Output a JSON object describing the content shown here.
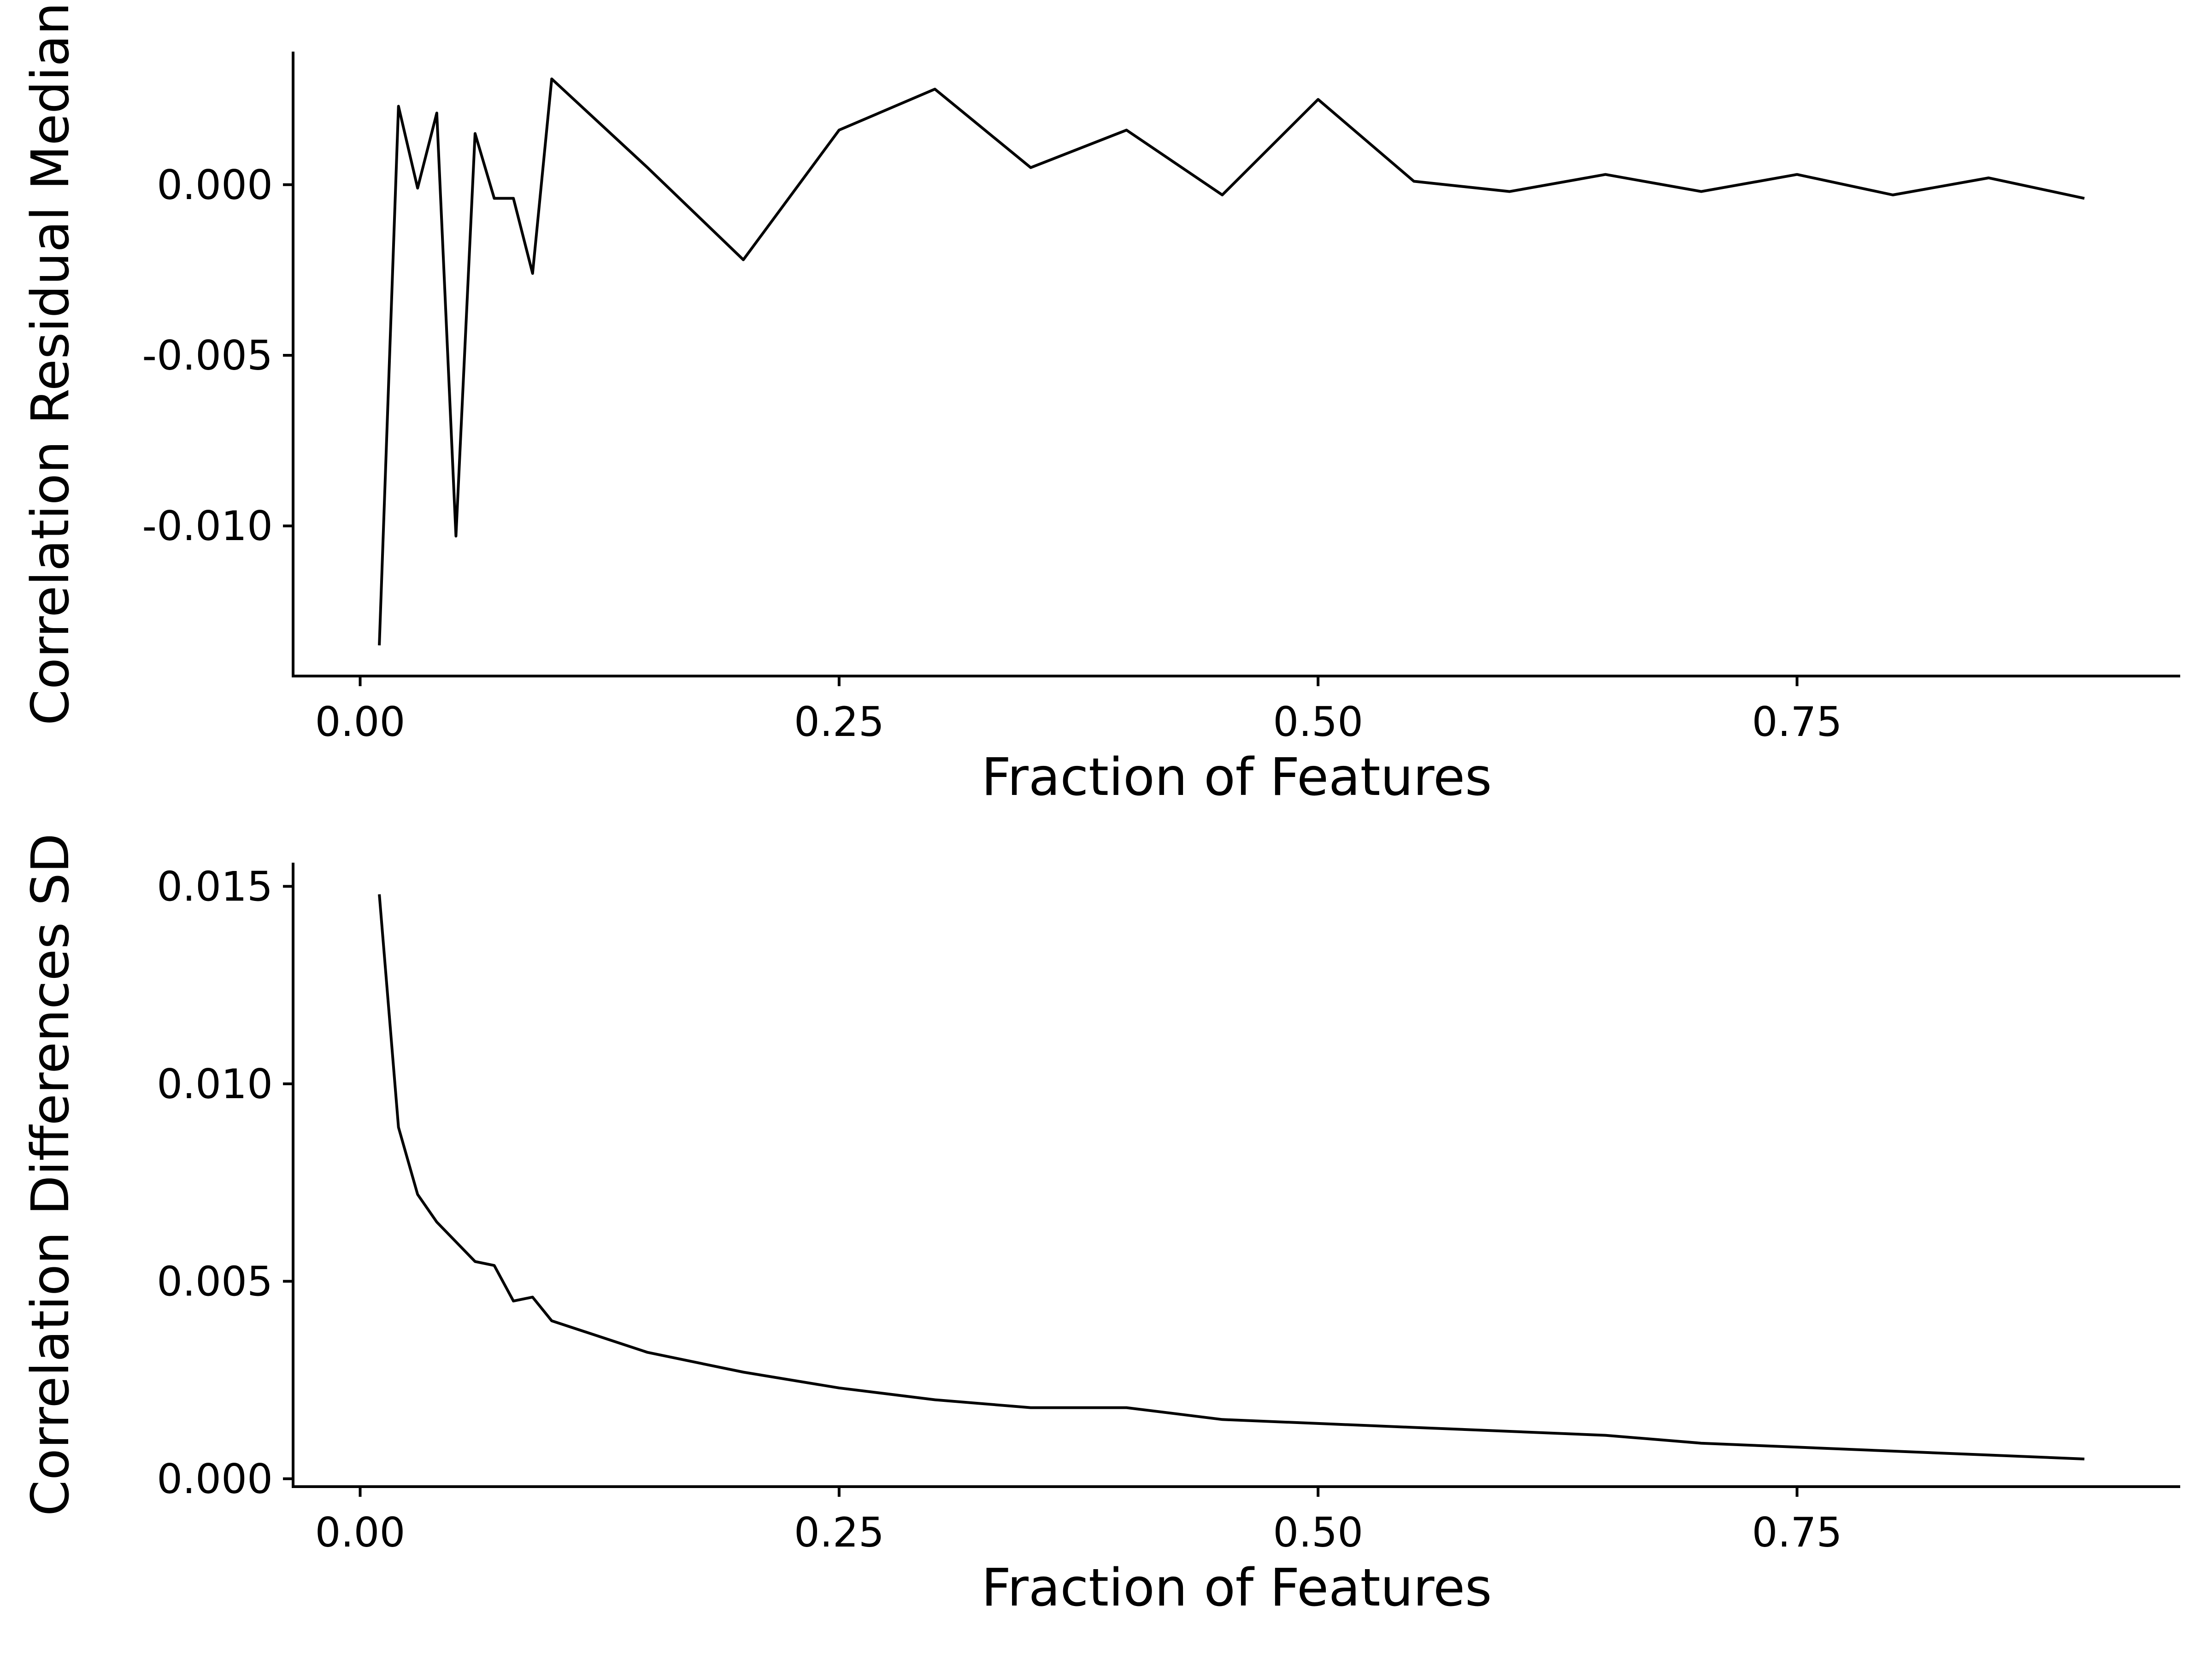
{
  "chart_data": [
    {
      "type": "line",
      "title": "",
      "xlabel": "Fraction of Features",
      "ylabel": "Correlation Residual Median",
      "xlim": [
        -0.035,
        0.95
      ],
      "ylim": [
        -0.0144,
        0.0039
      ],
      "x_ticks": [
        0.0,
        0.25,
        0.5,
        0.75
      ],
      "x_tick_labels": [
        "0.00",
        "0.25",
        "0.50",
        "0.75"
      ],
      "y_ticks": [
        -0.01,
        -0.005,
        0.0
      ],
      "y_tick_labels": [
        "-0.010",
        "-0.005",
        "0.000"
      ],
      "grid": false,
      "series": [
        {
          "color": "#000000",
          "x": [
            0.01,
            0.02,
            0.03,
            0.04,
            0.05,
            0.06,
            0.07,
            0.08,
            0.09,
            0.1,
            0.15,
            0.2,
            0.25,
            0.3,
            0.35,
            0.4,
            0.45,
            0.5,
            0.55,
            0.6,
            0.65,
            0.7,
            0.75,
            0.8,
            0.85,
            0.9
          ],
          "y": [
            -0.0135,
            0.0023,
            -0.0001,
            0.0021,
            -0.0103,
            0.0015,
            -0.0004,
            -0.0004,
            -0.0026,
            0.0031,
            0.0005,
            -0.0022,
            0.0016,
            0.0028,
            0.0005,
            0.0016,
            -0.0003,
            0.0025,
            0.0001,
            -0.0002,
            0.0003,
            -0.0002,
            0.0003,
            -0.0003,
            0.0002,
            -0.0004
          ]
        }
      ]
    },
    {
      "type": "line",
      "title": "",
      "xlabel": "Fraction of Features",
      "ylabel": "Correlation Differences SD",
      "xlim": [
        -0.035,
        0.95
      ],
      "ylim": [
        -0.0002,
        0.0156
      ],
      "x_ticks": [
        0.0,
        0.25,
        0.5,
        0.75
      ],
      "x_tick_labels": [
        "0.00",
        "0.25",
        "0.50",
        "0.75"
      ],
      "y_ticks": [
        0.0,
        0.005,
        0.01,
        0.015
      ],
      "y_tick_labels": [
        "0.000",
        "0.005",
        "0.010",
        "0.015"
      ],
      "grid": false,
      "series": [
        {
          "color": "#000000",
          "x": [
            0.01,
            0.02,
            0.03,
            0.04,
            0.05,
            0.06,
            0.07,
            0.08,
            0.09,
            0.1,
            0.15,
            0.2,
            0.25,
            0.3,
            0.35,
            0.4,
            0.45,
            0.5,
            0.55,
            0.6,
            0.65,
            0.7,
            0.75,
            0.8,
            0.85,
            0.9
          ],
          "y": [
            0.0148,
            0.0089,
            0.0072,
            0.0065,
            0.006,
            0.0055,
            0.0054,
            0.0045,
            0.0046,
            0.004,
            0.0032,
            0.0027,
            0.0023,
            0.002,
            0.0018,
            0.0018,
            0.0015,
            0.0014,
            0.0013,
            0.0012,
            0.0011,
            0.0009,
            0.0008,
            0.0007,
            0.0006,
            0.0005
          ]
        }
      ]
    }
  ]
}
